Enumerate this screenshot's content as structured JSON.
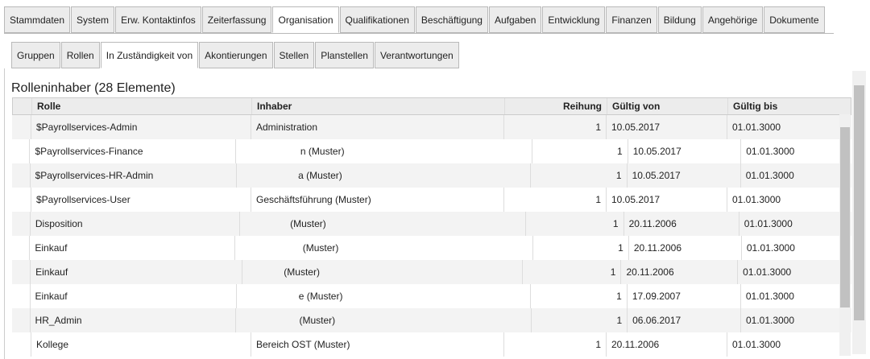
{
  "tabs": [
    "Stammdaten",
    "System",
    "Erw. Kontaktinfos",
    "Zeiterfassung",
    "Organisation",
    "Qualifikationen",
    "Beschäftigung",
    "Aufgaben",
    "Entwicklung",
    "Finanzen",
    "Bildung",
    "Angehörige",
    "Dokumente"
  ],
  "active_tab": 4,
  "subtabs": [
    "Gruppen",
    "Rollen",
    "In Zuständigkeit von",
    "Akontierungen",
    "Stellen",
    "Planstellen",
    "Verantwortungen"
  ],
  "active_subtab": 2,
  "section_title": "Rolleninhaber (28 Elemente)",
  "table": {
    "columns": [
      "Rolle",
      "Inhaber",
      "Reihung",
      "Gültig von",
      "Gültig bis"
    ],
    "rows": [
      {
        "rolle": "$Payrollservices-Admin",
        "inhaber": "Administration",
        "reihung": 1,
        "gueltig_von": "10.05.2017",
        "gueltig_bis": "01.01.3000"
      },
      {
        "rolle": "$Payrollservices-Finance",
        "inhaber": "n (Muster)",
        "reihung": 1,
        "gueltig_von": "10.05.2017",
        "gueltig_bis": "01.01.3000"
      },
      {
        "rolle": "$Payrollservices-HR-Admin",
        "inhaber": "a (Muster)",
        "reihung": 1,
        "gueltig_von": "10.05.2017",
        "gueltig_bis": "01.01.3000"
      },
      {
        "rolle": "$Payrollservices-User",
        "inhaber": "Geschäftsführung (Muster)",
        "reihung": 1,
        "gueltig_von": "10.05.2017",
        "gueltig_bis": "01.01.3000"
      },
      {
        "rolle": "Disposition",
        "inhaber": "(Muster)",
        "reihung": 1,
        "gueltig_von": "20.11.2006",
        "gueltig_bis": "01.01.3000"
      },
      {
        "rolle": "Einkauf",
        "inhaber": "(Muster)",
        "reihung": 1,
        "gueltig_von": "20.11.2006",
        "gueltig_bis": "01.01.3000"
      },
      {
        "rolle": "Einkauf",
        "inhaber": "(Muster)",
        "reihung": 1,
        "gueltig_von": "20.11.2006",
        "gueltig_bis": "01.01.3000"
      },
      {
        "rolle": "Einkauf",
        "inhaber": "e (Muster)",
        "reihung": 1,
        "gueltig_von": "17.09.2007",
        "gueltig_bis": "01.01.3000"
      },
      {
        "rolle": "HR_Admin",
        "inhaber": "(Muster)",
        "reihung": 1,
        "gueltig_von": "06.06.2017",
        "gueltig_bis": "01.01.3000"
      },
      {
        "rolle": "Kollege",
        "inhaber": "Bereich OST (Muster)",
        "reihung": 1,
        "gueltig_von": "20.11.2006",
        "gueltig_bis": "01.01.3000"
      }
    ]
  }
}
